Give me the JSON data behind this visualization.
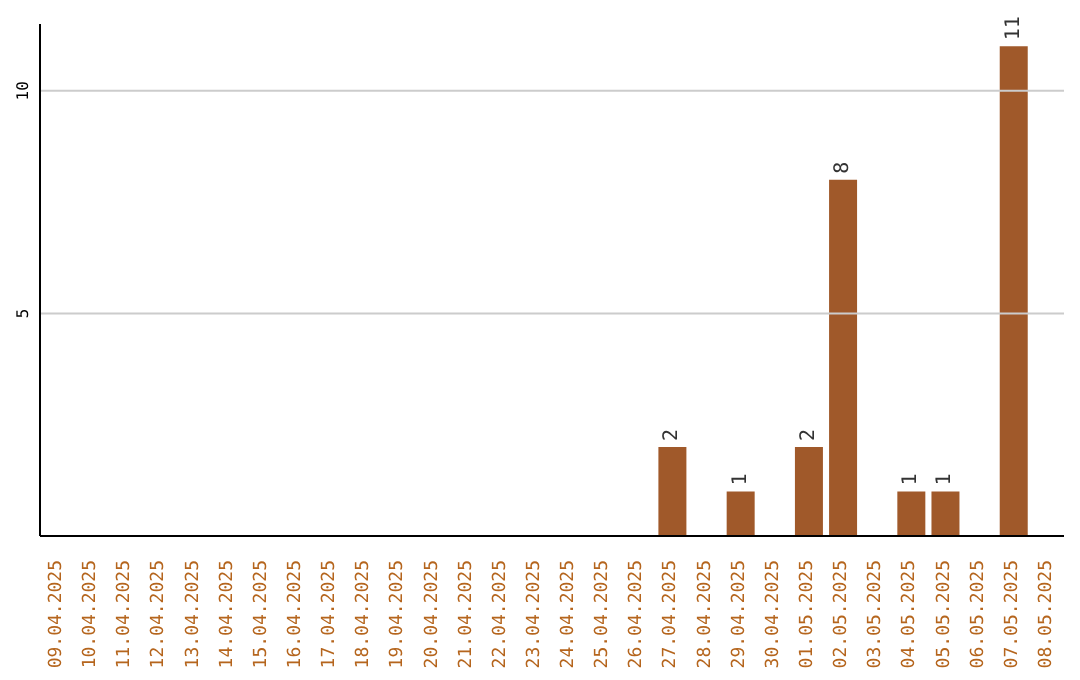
{
  "chart_data": {
    "type": "bar",
    "categories": [
      "09.04.2025",
      "10.04.2025",
      "11.04.2025",
      "12.04.2025",
      "13.04.2025",
      "14.04.2025",
      "15.04.2025",
      "16.04.2025",
      "17.04.2025",
      "18.04.2025",
      "19.04.2025",
      "20.04.2025",
      "21.04.2025",
      "22.04.2025",
      "23.04.2025",
      "24.04.2025",
      "25.04.2025",
      "26.04.2025",
      "27.04.2025",
      "28.04.2025",
      "29.04.2025",
      "30.04.2025",
      "01.05.2025",
      "02.05.2025",
      "03.05.2025",
      "04.05.2025",
      "05.05.2025",
      "06.05.2025",
      "07.05.2025",
      "08.05.2025"
    ],
    "values": [
      0,
      0,
      0,
      0,
      0,
      0,
      0,
      0,
      0,
      0,
      0,
      0,
      0,
      0,
      0,
      0,
      0,
      0,
      2,
      0,
      1,
      0,
      2,
      8,
      0,
      1,
      1,
      0,
      11,
      0
    ],
    "value_labels": [
      null,
      null,
      null,
      null,
      null,
      null,
      null,
      null,
      null,
      null,
      null,
      null,
      null,
      null,
      null,
      null,
      null,
      null,
      "2",
      null,
      "1",
      null,
      "2",
      "8",
      null,
      "1",
      "1",
      null,
      "11",
      null
    ],
    "color": "#a0592a",
    "ylim": [
      0,
      11.5
    ],
    "yticks": [
      5,
      10
    ],
    "grid": "y"
  }
}
